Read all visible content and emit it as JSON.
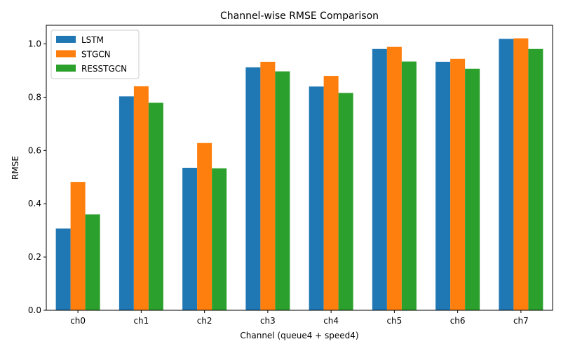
{
  "chart_data": {
    "type": "bar",
    "title": "Channel-wise RMSE Comparison",
    "xlabel": "Channel (queue4 + speed4)",
    "ylabel": "RMSE",
    "categories": [
      "ch0",
      "ch1",
      "ch2",
      "ch3",
      "ch4",
      "ch5",
      "ch6",
      "ch7"
    ],
    "series": [
      {
        "name": "LSTM",
        "color": "#1f77b4",
        "values": [
          0.307,
          0.803,
          0.535,
          0.912,
          0.84,
          0.981,
          0.933,
          1.019
        ]
      },
      {
        "name": "STGCN",
        "color": "#ff7f0e",
        "values": [
          0.482,
          0.841,
          0.628,
          0.933,
          0.88,
          0.989,
          0.944,
          1.021
        ]
      },
      {
        "name": "RESSTGCN",
        "color": "#2ca02c",
        "values": [
          0.36,
          0.779,
          0.533,
          0.897,
          0.816,
          0.934,
          0.907,
          0.981
        ]
      }
    ],
    "ylim": [
      0,
      1.07
    ],
    "yticks": [
      "0.0",
      "0.2",
      "0.4",
      "0.6",
      "0.8",
      "1.0"
    ],
    "grid": false,
    "legend_position": "top-left"
  }
}
